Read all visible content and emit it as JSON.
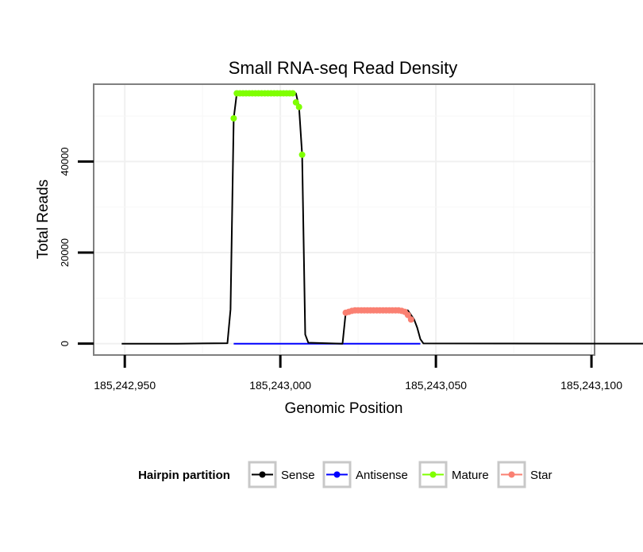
{
  "chart_data": {
    "type": "line",
    "title": "Small RNA-seq Read Density",
    "xlabel": "Genomic Position",
    "ylabel": "Total Reads",
    "xlim": [
      185242940,
      185243101
    ],
    "ylim": [
      -2500,
      57000
    ],
    "x_ticks": [
      185242950,
      185243000,
      185243050,
      185243100
    ],
    "x_tick_labels": [
      "185,242,950",
      "185,243,000",
      "185,243,050",
      "185,243,100"
    ],
    "y_ticks": [
      0,
      20000,
      40000
    ],
    "y_tick_labels": [
      "0",
      "20000",
      "40000"
    ],
    "grid": true,
    "legend": {
      "title": "Hairpin partition",
      "position": "bottom",
      "entries": [
        "Sense",
        "Antisense",
        "Mature",
        "Star"
      ]
    },
    "colors": {
      "Sense": "#000000",
      "Antisense": "#0000ff",
      "Mature": "#7fff00",
      "Star": "#fa8072"
    },
    "series": [
      {
        "name": "Sense",
        "type": "line",
        "x": [
          185242949,
          185242967,
          185242983,
          185242984,
          185242985,
          185242986,
          185243005,
          185243006,
          185243007,
          185243008,
          185243009,
          185243020,
          185243021,
          185243022,
          185243041,
          185243042,
          185243043,
          185243044,
          185243045,
          185243046,
          185243120
        ],
        "y": [
          0,
          0,
          100,
          7500,
          49500,
          55000,
          55000,
          52000,
          41500,
          2000,
          200,
          0,
          6800,
          7300,
          7300,
          6300,
          5300,
          3500,
          1000,
          50,
          0
        ]
      },
      {
        "name": "Antisense",
        "type": "line",
        "x": [
          185242985,
          185243045
        ],
        "y": [
          0,
          0
        ]
      },
      {
        "name": "Mature",
        "type": "points",
        "x": [
          185242985,
          185242986,
          185242987,
          185242988,
          185242989,
          185242990,
          185242991,
          185242992,
          185242993,
          185242994,
          185242995,
          185242996,
          185242997,
          185242998,
          185242999,
          185243000,
          185243001,
          185243002,
          185243003,
          185243004,
          185243005,
          185243006,
          185243007
        ],
        "y": [
          49500,
          55000,
          55000,
          55000,
          55000,
          55000,
          55000,
          55000,
          55000,
          55000,
          55000,
          55000,
          55000,
          55000,
          55000,
          55000,
          55000,
          55000,
          55000,
          55000,
          53000,
          52000,
          41500
        ]
      },
      {
        "name": "Star",
        "type": "points",
        "x": [
          185243021,
          185243022,
          185243023,
          185243024,
          185243025,
          185243026,
          185243027,
          185243028,
          185243029,
          185243030,
          185243031,
          185243032,
          185243033,
          185243034,
          185243035,
          185243036,
          185243037,
          185243038,
          185243039,
          185243040,
          185243041,
          185243042
        ],
        "y": [
          6800,
          7000,
          7200,
          7300,
          7300,
          7300,
          7300,
          7300,
          7300,
          7300,
          7300,
          7300,
          7300,
          7300,
          7300,
          7300,
          7300,
          7300,
          7200,
          7000,
          6300,
          5300
        ]
      }
    ]
  }
}
